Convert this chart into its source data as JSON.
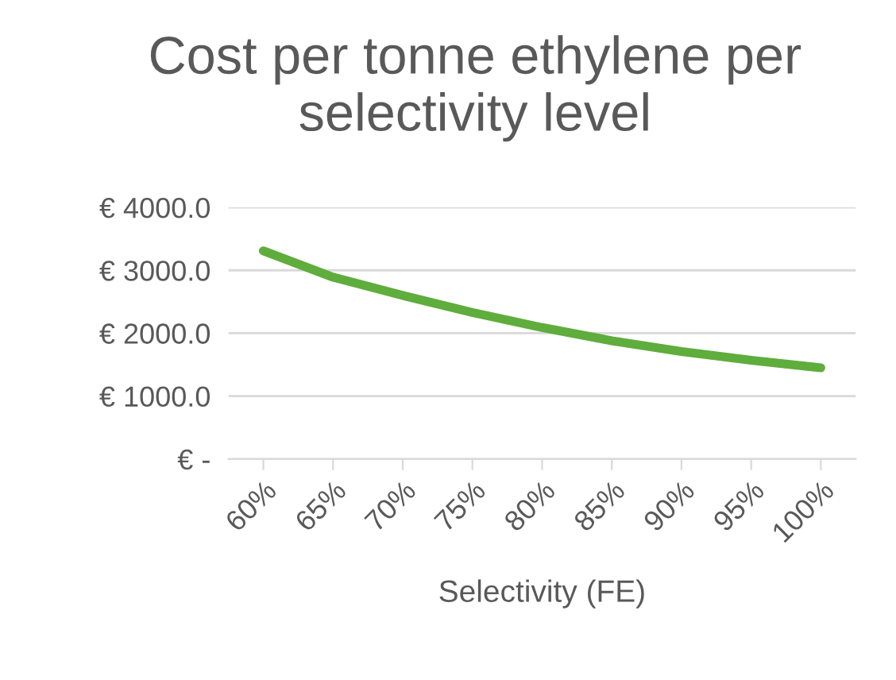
{
  "chart_data": {
    "type": "line",
    "title": "Cost per tonne ethylene per selectivity level",
    "xlabel": "Selectivity (FE)",
    "categories": [
      "60%",
      "65%",
      "70%",
      "75%",
      "80%",
      "85%",
      "90%",
      "95%",
      "100%"
    ],
    "series": [
      {
        "color": "#5fad3c",
        "values": [
          3310,
          2890,
          2600,
          2330,
          2090,
          1880,
          1710,
          1570,
          1450
        ]
      }
    ],
    "ylim": [
      0,
      4000
    ],
    "yticks": [
      {
        "value": 0,
        "label": "€ -"
      },
      {
        "value": 1000,
        "label": "€ 1000.0"
      },
      {
        "value": 2000,
        "label": "€ 2000.0"
      },
      {
        "value": 3000,
        "label": "€ 3000.0"
      },
      {
        "value": 4000,
        "label": "€ 4000.0"
      }
    ],
    "grid": "y",
    "line_style": "solid",
    "marker": "none"
  }
}
